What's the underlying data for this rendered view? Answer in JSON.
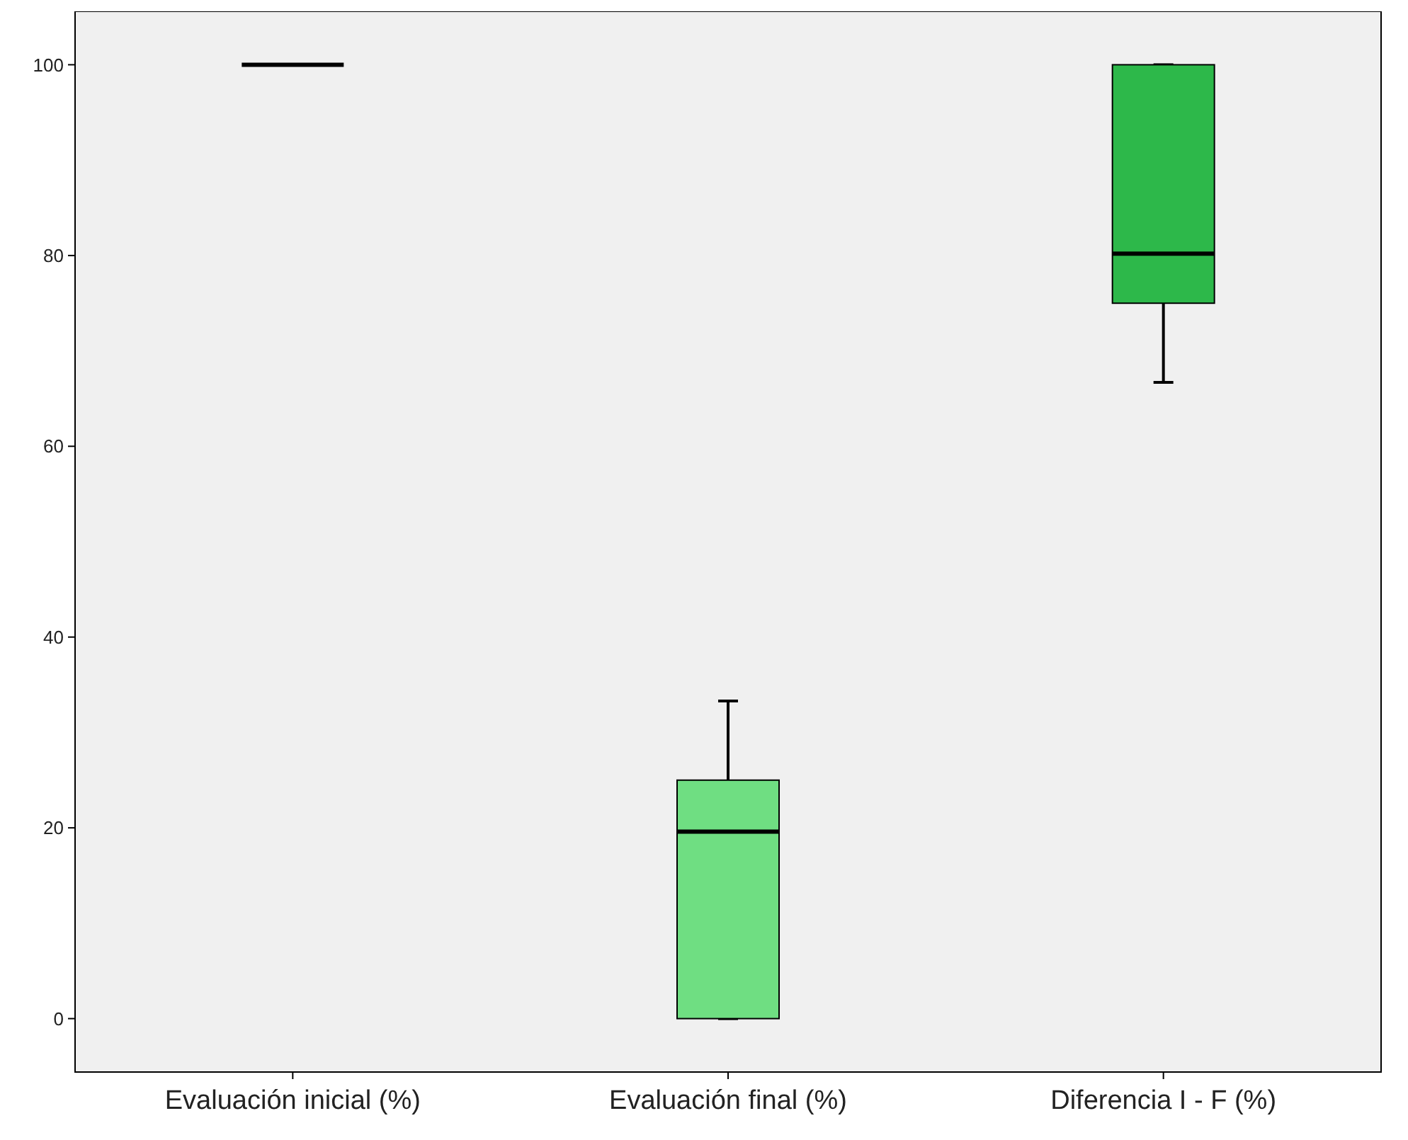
{
  "chart_data": {
    "type": "box",
    "categories": [
      "Evaluación inicial (%)",
      "Evaluación final (%)",
      "Diferencia I - F (%)"
    ],
    "boxes": [
      {
        "low": 100,
        "q1": 100,
        "median": 100,
        "q3": 100,
        "high": 100
      },
      {
        "low": 0,
        "q1": 0,
        "median": 19.6,
        "q3": 25,
        "high": 33.3
      },
      {
        "low": 66.7,
        "q1": 75,
        "median": 80.2,
        "q3": 100,
        "high": 100
      }
    ],
    "colors": [
      null,
      "#6fde82",
      "#2db84a"
    ],
    "ylim": [
      -5.6,
      105.6
    ],
    "yticks": [
      0,
      20,
      40,
      60,
      80,
      100
    ],
    "grid": false
  }
}
